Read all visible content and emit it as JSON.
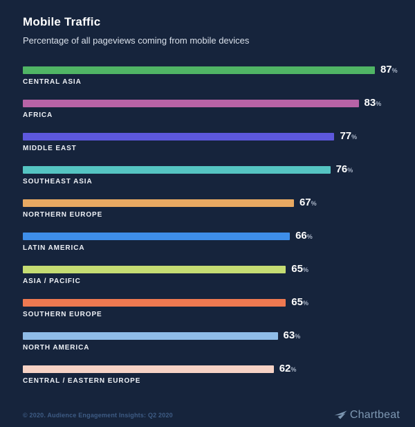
{
  "header": {
    "title": "Mobile Traffic",
    "subtitle": "Percentage of all pageviews coming from mobile devices"
  },
  "chart_data": {
    "type": "bar",
    "orientation": "horizontal",
    "title": "Mobile Traffic",
    "subtitle": "Percentage of all pageviews coming from mobile devices",
    "categories": [
      "CENTRAL ASIA",
      "AFRICA",
      "MIDDLE EAST",
      "SOUTHEAST ASIA",
      "NORTHERN EUROPE",
      "LATIN AMERICA",
      "ASIA / PACIFIC",
      "SOUTHERN EUROPE",
      "NORTH AMERICA",
      "CENTRAL / EASTERN EUROPE"
    ],
    "values": [
      87,
      83,
      77,
      76,
      67,
      66,
      65,
      65,
      63,
      62
    ],
    "unit": "%",
    "xlim": [
      0,
      100
    ],
    "grid": false,
    "legend": "none",
    "value_labels": "end-of-bar",
    "bar_colors": [
      "#50b565",
      "#b763a6",
      "#5d58dd",
      "#55c4c2",
      "#e8a962",
      "#3e8ee9",
      "#c5dc73",
      "#ee7951",
      "#8fbce8",
      "#f6d2c5"
    ],
    "background_color": "#16243c"
  },
  "footer": {
    "attribution": "© 2020. Audience Engagement Insights: Q2 2020",
    "brand": "Chartbeat",
    "brand_icon": "chartbeat-paper-plane-icon"
  }
}
